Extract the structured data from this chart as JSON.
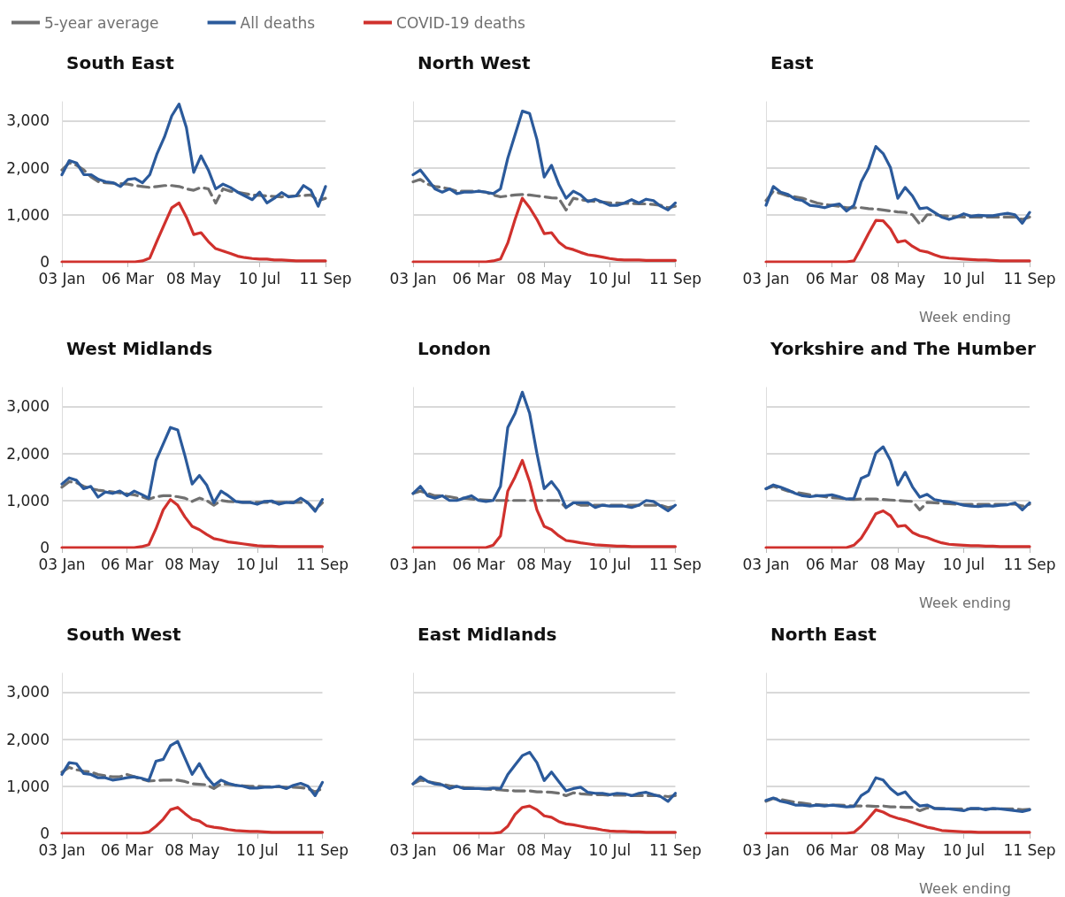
{
  "chart_data": [
    {
      "type": "line",
      "ylim": [
        0,
        3400
      ],
      "title": "South East",
      "legend": "top",
      "categories": [
        "03 Jan",
        null,
        null,
        null,
        null,
        null,
        null,
        null,
        null,
        "06 Mar",
        null,
        null,
        null,
        null,
        null,
        null,
        null,
        null,
        "08 May",
        null,
        null,
        null,
        null,
        null,
        null,
        null,
        null,
        "10 Jul",
        null,
        null,
        null,
        null,
        null,
        null,
        null,
        null,
        "11 Sep"
      ],
      "yticks": [
        0,
        {
          "value": 1000,
          "label": "1,000"
        },
        {
          "value": 2000,
          "label": "2,000"
        },
        {
          "value": 3000,
          "label": "3,000"
        }
      ],
      "grid": "y",
      "marker": "none",
      "series": [
        {
          "name": "5-year average",
          "color": "#707070",
          "line_style": "dashed",
          "values": [
            1950,
            2100,
            2050,
            1950,
            1800,
            1700,
            1680,
            1670,
            1660,
            1650,
            1620,
            1600,
            1580,
            1600,
            1620,
            1620,
            1600,
            1550,
            1520,
            1580,
            1550,
            1250,
            1550,
            1500,
            1480,
            1450,
            1420,
            1410,
            1400,
            1390,
            1380,
            1390,
            1400,
            1410,
            1420,
            1300,
            1350
          ]
        },
        {
          "name": "All deaths",
          "color": "#2b5a9b",
          "line_style": "solid",
          "values": [
            1850,
            2150,
            2100,
            1850,
            1850,
            1750,
            1700,
            1680,
            1600,
            1750,
            1770,
            1680,
            1850,
            2300,
            2650,
            3100,
            3350,
            2850,
            1900,
            2250,
            1950,
            1550,
            1650,
            1580,
            1480,
            1400,
            1320,
            1480,
            1250,
            1350,
            1470,
            1380,
            1400,
            1620,
            1520,
            1180,
            1600
          ]
        },
        {
          "name": "COVID-19 deaths",
          "color": "#d0312d",
          "line_style": "solid",
          "values": [
            0,
            0,
            0,
            0,
            0,
            0,
            0,
            0,
            0,
            0,
            0,
            20,
            80,
            450,
            800,
            1150,
            1250,
            950,
            580,
            620,
            430,
            280,
            230,
            180,
            120,
            90,
            70,
            60,
            60,
            40,
            40,
            30,
            20,
            20,
            20,
            20,
            20
          ]
        }
      ]
    },
    {
      "type": "line",
      "ylim": [
        0,
        3400
      ],
      "title": "North West",
      "tick_labels": "x",
      "categories": [
        "03 Jan",
        null,
        null,
        null,
        null,
        null,
        null,
        null,
        null,
        "06 Mar",
        null,
        null,
        null,
        null,
        null,
        null,
        null,
        null,
        "08 May",
        null,
        null,
        null,
        null,
        null,
        null,
        null,
        null,
        "10 Jul",
        null,
        null,
        null,
        null,
        null,
        null,
        null,
        null,
        "11 Sep"
      ],
      "yticks": [
        0,
        1000,
        2000,
        3000
      ],
      "grid": "y",
      "marker": "none",
      "series": [
        {
          "color": "#707070",
          "line_style": "dashed",
          "values": [
            1700,
            1750,
            1650,
            1600,
            1580,
            1550,
            1500,
            1500,
            1500,
            1500,
            1480,
            1420,
            1380,
            1400,
            1420,
            1430,
            1420,
            1400,
            1380,
            1360,
            1350,
            1100,
            1350,
            1320,
            1300,
            1280,
            1270,
            1250,
            1250,
            1240,
            1240,
            1230,
            1230,
            1220,
            1200,
            1150,
            1180
          ]
        },
        {
          "color": "#2b5a9b",
          "line_style": "solid",
          "values": [
            1850,
            1950,
            1750,
            1550,
            1480,
            1550,
            1450,
            1480,
            1480,
            1500,
            1480,
            1450,
            1550,
            2200,
            2700,
            3200,
            3150,
            2600,
            1800,
            2050,
            1650,
            1350,
            1500,
            1420,
            1280,
            1330,
            1270,
            1200,
            1200,
            1250,
            1320,
            1250,
            1330,
            1300,
            1180,
            1100,
            1250
          ]
        },
        {
          "color": "#d0312d",
          "line_style": "solid",
          "values": [
            0,
            0,
            0,
            0,
            0,
            0,
            0,
            0,
            0,
            0,
            0,
            20,
            60,
            400,
            900,
            1350,
            1150,
            900,
            600,
            620,
            420,
            300,
            260,
            200,
            150,
            130,
            100,
            70,
            50,
            40,
            40,
            40,
            30,
            30,
            30,
            30,
            30
          ]
        }
      ]
    },
    {
      "type": "line",
      "ylim": [
        0,
        3400
      ],
      "title": "East",
      "xlabel": "Week ending",
      "tick_labels": "x",
      "categories": [
        "03 Jan",
        null,
        null,
        null,
        null,
        null,
        null,
        null,
        null,
        "06 Mar",
        null,
        null,
        null,
        null,
        null,
        null,
        null,
        null,
        "08 May",
        null,
        null,
        null,
        null,
        null,
        null,
        null,
        null,
        "10 Jul",
        null,
        null,
        null,
        null,
        null,
        null,
        null,
        null,
        "11 Sep"
      ],
      "yticks": [
        0,
        1000,
        2000,
        3000
      ],
      "grid": "y",
      "marker": "none",
      "series": [
        {
          "color": "#707070",
          "line_style": "dashed",
          "values": [
            1300,
            1500,
            1450,
            1400,
            1380,
            1350,
            1300,
            1250,
            1220,
            1200,
            1180,
            1150,
            1150,
            1150,
            1130,
            1120,
            1100,
            1080,
            1060,
            1050,
            1000,
            800,
            1000,
            1000,
            980,
            970,
            960,
            950,
            950,
            950,
            950,
            950,
            950,
            950,
            950,
            900,
            950
          ]
        },
        {
          "color": "#2b5a9b",
          "line_style": "solid",
          "values": [
            1200,
            1600,
            1480,
            1430,
            1330,
            1300,
            1200,
            1180,
            1150,
            1200,
            1230,
            1080,
            1200,
            1700,
            1990,
            2450,
            2300,
            2000,
            1350,
            1580,
            1400,
            1130,
            1150,
            1050,
            950,
            900,
            950,
            1020,
            970,
            990,
            980,
            980,
            1010,
            1030,
            1000,
            820,
            1050
          ]
        },
        {
          "color": "#d0312d",
          "line_style": "solid",
          "values": [
            0,
            0,
            0,
            0,
            0,
            0,
            0,
            0,
            0,
            0,
            0,
            0,
            20,
            300,
            600,
            880,
            870,
            700,
            420,
            450,
            330,
            240,
            210,
            150,
            100,
            80,
            70,
            60,
            50,
            40,
            40,
            30,
            20,
            20,
            20,
            20,
            20
          ]
        }
      ]
    },
    {
      "type": "line",
      "ylim": [
        0,
        3400
      ],
      "title": "West Midlands",
      "categories": [
        "03 Jan",
        null,
        null,
        null,
        null,
        null,
        null,
        null,
        null,
        "06 Mar",
        null,
        null,
        null,
        null,
        null,
        null,
        null,
        null,
        "08 May",
        null,
        null,
        null,
        null,
        null,
        null,
        null,
        null,
        "10 Jul",
        null,
        null,
        null,
        null,
        null,
        null,
        null,
        null,
        "11 Sep"
      ],
      "yticks": [
        0,
        {
          "value": 1000,
          "label": "1,000"
        },
        {
          "value": 2000,
          "label": "2,000"
        },
        {
          "value": 3000,
          "label": "3,000"
        }
      ],
      "grid": "y",
      "marker": "none",
      "series": [
        {
          "color": "#707070",
          "line_style": "dashed",
          "values": [
            1280,
            1400,
            1380,
            1300,
            1250,
            1220,
            1200,
            1180,
            1160,
            1140,
            1120,
            1080,
            1030,
            1080,
            1100,
            1100,
            1080,
            1050,
            980,
            1050,
            1000,
            900,
            1000,
            980,
            970,
            960,
            960,
            960,
            960,
            960,
            960,
            960,
            960,
            960,
            950,
            800,
            950
          ]
        },
        {
          "color": "#2b5a9b",
          "line_style": "solid",
          "values": [
            1350,
            1480,
            1430,
            1250,
            1300,
            1070,
            1180,
            1150,
            1200,
            1100,
            1200,
            1130,
            1050,
            1850,
            2200,
            2550,
            2500,
            1950,
            1350,
            1530,
            1330,
            950,
            1200,
            1100,
            980,
            960,
            960,
            920,
            980,
            990,
            920,
            960,
            950,
            1050,
            950,
            770,
            1020
          ]
        },
        {
          "color": "#d0312d",
          "line_style": "solid",
          "values": [
            0,
            0,
            0,
            0,
            0,
            0,
            0,
            0,
            0,
            0,
            0,
            20,
            60,
            400,
            800,
            1020,
            900,
            650,
            450,
            380,
            280,
            190,
            160,
            120,
            100,
            80,
            60,
            40,
            30,
            30,
            20,
            20,
            20,
            20,
            20,
            20,
            20
          ]
        }
      ]
    },
    {
      "type": "line",
      "ylim": [
        0,
        3400
      ],
      "title": "London",
      "tick_labels": "x",
      "categories": [
        "03 Jan",
        null,
        null,
        null,
        null,
        null,
        null,
        null,
        null,
        "06 Mar",
        null,
        null,
        null,
        null,
        null,
        null,
        null,
        null,
        "08 May",
        null,
        null,
        null,
        null,
        null,
        null,
        null,
        null,
        "10 Jul",
        null,
        null,
        null,
        null,
        null,
        null,
        null,
        null,
        "11 Sep"
      ],
      "yticks": [
        0,
        1000,
        2000,
        3000
      ],
      "grid": "y",
      "marker": "none",
      "series": [
        {
          "color": "#707070",
          "line_style": "dashed",
          "values": [
            1150,
            1200,
            1150,
            1100,
            1100,
            1080,
            1050,
            1050,
            1030,
            1020,
            1010,
            1000,
            1000,
            1000,
            1000,
            1000,
            1000,
            1000,
            1000,
            1000,
            1000,
            850,
            950,
            900,
            900,
            900,
            900,
            900,
            900,
            900,
            900,
            900,
            900,
            900,
            900,
            850,
            880
          ]
        },
        {
          "color": "#2b5a9b",
          "line_style": "solid",
          "values": [
            1150,
            1300,
            1100,
            1050,
            1100,
            1000,
            1000,
            1050,
            1100,
            1000,
            980,
            1000,
            1300,
            2550,
            2850,
            3300,
            2850,
            2000,
            1250,
            1400,
            1200,
            850,
            950,
            950,
            950,
            850,
            900,
            880,
            880,
            880,
            850,
            900,
            1000,
            980,
            880,
            780,
            900
          ]
        },
        {
          "color": "#d0312d",
          "line_style": "solid",
          "values": [
            0,
            0,
            0,
            0,
            0,
            0,
            0,
            0,
            0,
            0,
            0,
            50,
            250,
            1200,
            1500,
            1850,
            1400,
            800,
            450,
            380,
            250,
            150,
            130,
            100,
            80,
            60,
            50,
            40,
            30,
            30,
            20,
            20,
            20,
            20,
            20,
            20,
            20
          ]
        }
      ]
    },
    {
      "type": "line",
      "ylim": [
        0,
        3400
      ],
      "title": "Yorkshire and The Humber",
      "xlabel": "Week ending",
      "tick_labels": "x",
      "categories": [
        "03 Jan",
        null,
        null,
        null,
        null,
        null,
        null,
        null,
        null,
        "06 Mar",
        null,
        null,
        null,
        null,
        null,
        null,
        null,
        null,
        "08 May",
        null,
        null,
        null,
        null,
        null,
        null,
        null,
        null,
        "10 Jul",
        null,
        null,
        null,
        null,
        null,
        null,
        null,
        null,
        "11 Sep"
      ],
      "yticks": [
        0,
        1000,
        2000,
        3000
      ],
      "grid": "y",
      "marker": "none",
      "series": [
        {
          "color": "#707070",
          "line_style": "dashed",
          "values": [
            1250,
            1300,
            1250,
            1200,
            1170,
            1150,
            1120,
            1100,
            1080,
            1060,
            1050,
            1030,
            1020,
            1030,
            1030,
            1030,
            1020,
            1010,
            1000,
            990,
            980,
            800,
            960,
            950,
            940,
            930,
            920,
            920,
            920,
            920,
            920,
            920,
            920,
            920,
            920,
            880,
            920
          ]
        },
        {
          "color": "#2b5a9b",
          "line_style": "solid",
          "values": [
            1250,
            1330,
            1280,
            1220,
            1150,
            1100,
            1080,
            1100,
            1100,
            1120,
            1080,
            1030,
            1040,
            1470,
            1540,
            2010,
            2140,
            1850,
            1330,
            1600,
            1290,
            1070,
            1130,
            1020,
            990,
            970,
            940,
            900,
            880,
            870,
            890,
            880,
            900,
            910,
            950,
            800,
            950
          ]
        },
        {
          "color": "#d0312d",
          "line_style": "solid",
          "values": [
            0,
            0,
            0,
            0,
            0,
            0,
            0,
            0,
            0,
            0,
            0,
            0,
            50,
            200,
            450,
            720,
            780,
            680,
            450,
            470,
            320,
            250,
            210,
            150,
            100,
            70,
            60,
            50,
            40,
            40,
            30,
            30,
            20,
            20,
            20,
            20,
            20
          ]
        }
      ]
    },
    {
      "type": "line",
      "ylim": [
        0,
        3400
      ],
      "title": "South West",
      "categories": [
        "03 Jan",
        null,
        null,
        null,
        null,
        null,
        null,
        null,
        null,
        "06 Mar",
        null,
        null,
        null,
        null,
        null,
        null,
        null,
        null,
        "08 May",
        null,
        null,
        null,
        null,
        null,
        null,
        null,
        null,
        "10 Jul",
        null,
        null,
        null,
        null,
        null,
        null,
        null,
        null,
        "11 Sep"
      ],
      "yticks": [
        0,
        {
          "value": 1000,
          "label": "1,000"
        },
        {
          "value": 2000,
          "label": "2,000"
        },
        {
          "value": 3000,
          "label": "3,000"
        }
      ],
      "grid": "y",
      "marker": "none",
      "series": [
        {
          "color": "#707070",
          "line_style": "dashed",
          "values": [
            1300,
            1400,
            1350,
            1320,
            1300,
            1250,
            1220,
            1200,
            1200,
            1250,
            1200,
            1150,
            1110,
            1120,
            1130,
            1130,
            1130,
            1100,
            1050,
            1040,
            1030,
            950,
            1050,
            1040,
            1020,
            1010,
            1000,
            1000,
            990,
            990,
            990,
            980,
            980,
            970,
            950,
            880,
            950
          ]
        },
        {
          "color": "#2b5a9b",
          "line_style": "solid",
          "values": [
            1250,
            1500,
            1480,
            1270,
            1250,
            1180,
            1180,
            1130,
            1150,
            1180,
            1200,
            1170,
            1120,
            1530,
            1570,
            1860,
            1950,
            1600,
            1250,
            1480,
            1200,
            1020,
            1130,
            1060,
            1020,
            1000,
            960,
            960,
            980,
            980,
            1000,
            950,
            1020,
            1060,
            1000,
            800,
            1080
          ]
        },
        {
          "color": "#d0312d",
          "line_style": "solid",
          "values": [
            0,
            0,
            0,
            0,
            0,
            0,
            0,
            0,
            0,
            0,
            0,
            0,
            30,
            150,
            300,
            500,
            550,
            420,
            300,
            260,
            160,
            130,
            110,
            80,
            60,
            50,
            40,
            40,
            30,
            20,
            20,
            20,
            20,
            20,
            20,
            20,
            20
          ]
        }
      ]
    },
    {
      "type": "line",
      "ylim": [
        0,
        3400
      ],
      "title": "East Midlands",
      "tick_labels": "x",
      "categories": [
        "03 Jan",
        null,
        null,
        null,
        null,
        null,
        null,
        null,
        null,
        "06 Mar",
        null,
        null,
        null,
        null,
        null,
        null,
        null,
        null,
        "08 May",
        null,
        null,
        null,
        null,
        null,
        null,
        null,
        null,
        "10 Jul",
        null,
        null,
        null,
        null,
        null,
        null,
        null,
        null,
        "11 Sep"
      ],
      "yticks": [
        0,
        1000,
        2000,
        3000
      ],
      "grid": "y",
      "marker": "none",
      "series": [
        {
          "color": "#707070",
          "line_style": "dashed",
          "values": [
            1050,
            1130,
            1100,
            1070,
            1040,
            1010,
            990,
            970,
            960,
            950,
            940,
            930,
            920,
            910,
            900,
            900,
            900,
            880,
            880,
            870,
            850,
            800,
            860,
            840,
            830,
            820,
            820,
            810,
            810,
            810,
            800,
            800,
            800,
            800,
            800,
            780,
            800
          ]
        },
        {
          "color": "#2b5a9b",
          "line_style": "solid",
          "values": [
            1050,
            1200,
            1100,
            1050,
            1030,
            950,
            1000,
            950,
            950,
            950,
            940,
            960,
            950,
            1250,
            1450,
            1650,
            1720,
            1500,
            1120,
            1300,
            1100,
            900,
            950,
            980,
            870,
            850,
            850,
            820,
            850,
            840,
            800,
            850,
            870,
            820,
            780,
            680,
            850
          ]
        },
        {
          "color": "#d0312d",
          "line_style": "solid",
          "values": [
            0,
            0,
            0,
            0,
            0,
            0,
            0,
            0,
            0,
            0,
            0,
            0,
            20,
            150,
            400,
            550,
            580,
            500,
            370,
            340,
            250,
            200,
            180,
            150,
            120,
            100,
            70,
            50,
            40,
            40,
            30,
            30,
            20,
            20,
            20,
            20,
            20
          ]
        }
      ]
    },
    {
      "type": "line",
      "ylim": [
        0,
        3400
      ],
      "title": "North East",
      "xlabel": "Week ending",
      "tick_labels": "x",
      "categories": [
        "03 Jan",
        null,
        null,
        null,
        null,
        null,
        null,
        null,
        null,
        "06 Mar",
        null,
        null,
        null,
        null,
        null,
        null,
        null,
        null,
        "08 May",
        null,
        null,
        null,
        null,
        null,
        null,
        null,
        null,
        "10 Jul",
        null,
        null,
        null,
        null,
        null,
        null,
        null,
        null,
        "11 Sep"
      ],
      "yticks": [
        0,
        1000,
        2000,
        3000
      ],
      "grid": "y",
      "marker": "none",
      "series": [
        {
          "color": "#707070",
          "line_style": "dashed",
          "values": [
            680,
            740,
            720,
            690,
            660,
            640,
            620,
            610,
            600,
            600,
            600,
            590,
            580,
            580,
            580,
            570,
            580,
            560,
            560,
            550,
            550,
            480,
            540,
            530,
            530,
            520,
            520,
            520,
            520,
            520,
            520,
            520,
            520,
            520,
            520,
            500,
            510
          ]
        },
        {
          "color": "#2b5a9b",
          "line_style": "solid",
          "values": [
            700,
            750,
            680,
            650,
            600,
            600,
            580,
            600,
            580,
            600,
            580,
            560,
            570,
            800,
            900,
            1180,
            1130,
            950,
            820,
            880,
            700,
            580,
            600,
            530,
            520,
            520,
            500,
            480,
            530,
            530,
            500,
            530,
            520,
            500,
            480,
            460,
            500
          ]
        },
        {
          "color": "#d0312d",
          "line_style": "solid",
          "values": [
            0,
            0,
            0,
            0,
            0,
            0,
            0,
            0,
            0,
            0,
            0,
            0,
            20,
            150,
            320,
            500,
            450,
            370,
            320,
            280,
            230,
            180,
            130,
            100,
            60,
            50,
            40,
            30,
            30,
            20,
            20,
            20,
            20,
            20,
            20,
            20,
            20
          ]
        }
      ]
    }
  ]
}
